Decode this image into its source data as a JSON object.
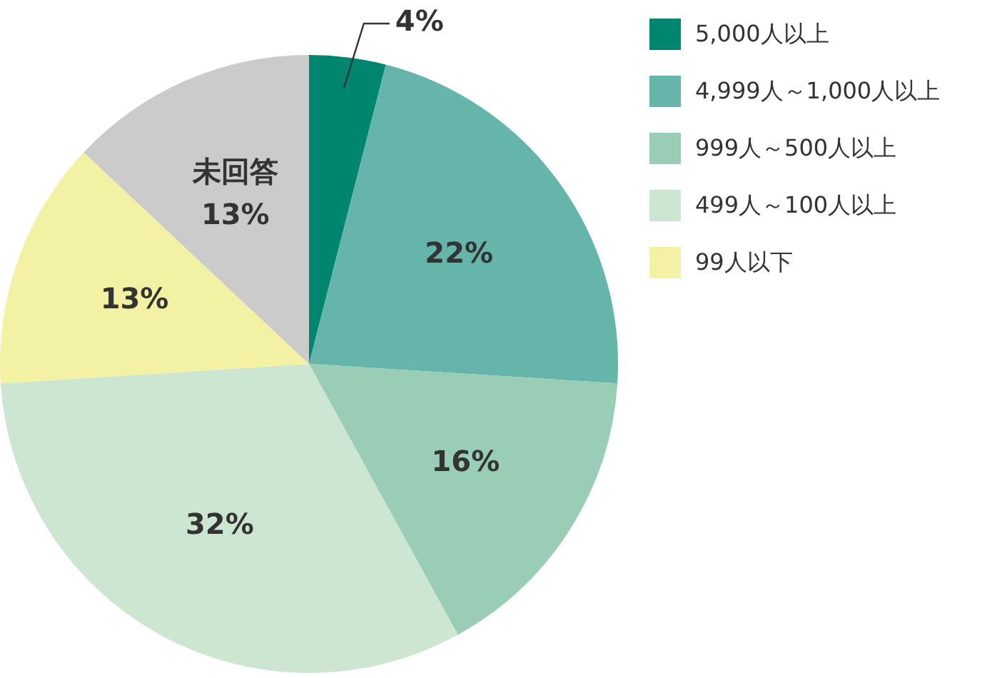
{
  "chart_data": {
    "type": "pie",
    "categories": [
      "5,000人以上",
      "4,999人～1,000人以上",
      "999人～500人以上",
      "499人～100人以上",
      "99人以下",
      "未回答"
    ],
    "values": [
      4,
      22,
      16,
      32,
      13,
      13
    ],
    "colors": [
      "#00856f",
      "#66b5aa",
      "#99cdb5",
      "#cce6d2",
      "#f3f1a3",
      "#cbcbcb"
    ],
    "value_labels": [
      "4%",
      "22%",
      "16%",
      "32%",
      "13%",
      "13%"
    ],
    "legend": "top right"
  }
}
